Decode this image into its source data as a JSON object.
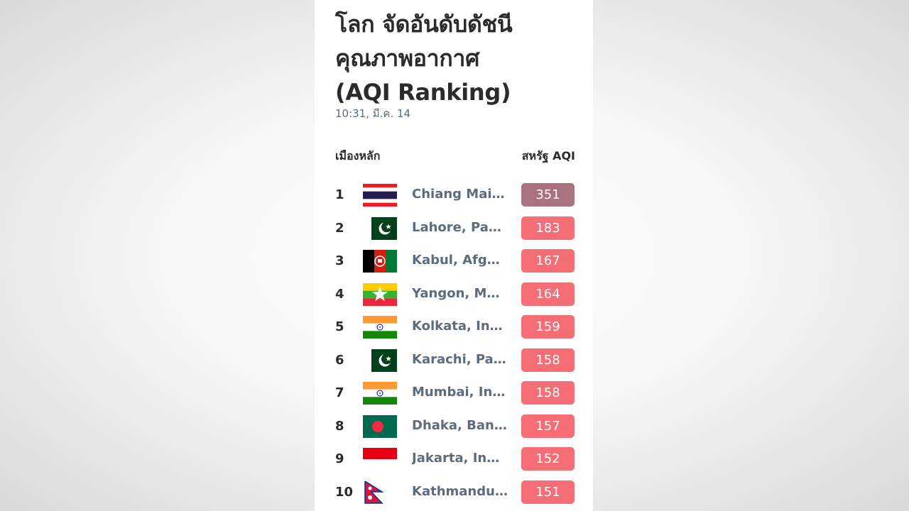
{
  "header": {
    "title_line1": "โลก จัดอันดับดัชนี",
    "title_line2": "คุณภาพอากาศ",
    "title_line3": "(AQI Ranking)",
    "timestamp": "10:31, มี.ค. 14"
  },
  "columns": {
    "city": "เมืองหลัก",
    "aqi": "สหรัฐ AQI"
  },
  "colors": {
    "unhealthy": "#f56d75",
    "hazardous": "#a9727f"
  },
  "rankings": [
    {
      "rank": "1",
      "city": "Chiang Mai, ...",
      "aqi": "351",
      "flag": "thailand-flag-icon",
      "level": "hazardous"
    },
    {
      "rank": "2",
      "city": "Lahore, Paki...",
      "aqi": "183",
      "flag": "pakistan-flag-icon",
      "level": "unhealthy"
    },
    {
      "rank": "3",
      "city": "Kabul, Afgha...",
      "aqi": "167",
      "flag": "afghanistan-flag-icon",
      "level": "unhealthy"
    },
    {
      "rank": "4",
      "city": "Yangon, Mya...",
      "aqi": "164",
      "flag": "myanmar-flag-icon",
      "level": "unhealthy"
    },
    {
      "rank": "5",
      "city": "Kolkata, India",
      "aqi": "159",
      "flag": "india-flag-icon",
      "level": "unhealthy"
    },
    {
      "rank": "6",
      "city": "Karachi, Paki...",
      "aqi": "158",
      "flag": "pakistan-flag-icon",
      "level": "unhealthy"
    },
    {
      "rank": "7",
      "city": "Mumbai, India",
      "aqi": "158",
      "flag": "india-flag-icon",
      "level": "unhealthy"
    },
    {
      "rank": "8",
      "city": "Dhaka, Bangl...",
      "aqi": "157",
      "flag": "bangladesh-flag-icon",
      "level": "unhealthy"
    },
    {
      "rank": "9",
      "city": "Jakarta, Indo...",
      "aqi": "152",
      "flag": "indonesia-flag-icon",
      "level": "unhealthy"
    },
    {
      "rank": "10",
      "city": "Kathmandu, ...",
      "aqi": "151",
      "flag": "nepal-flag-icon",
      "level": "unhealthy"
    }
  ]
}
